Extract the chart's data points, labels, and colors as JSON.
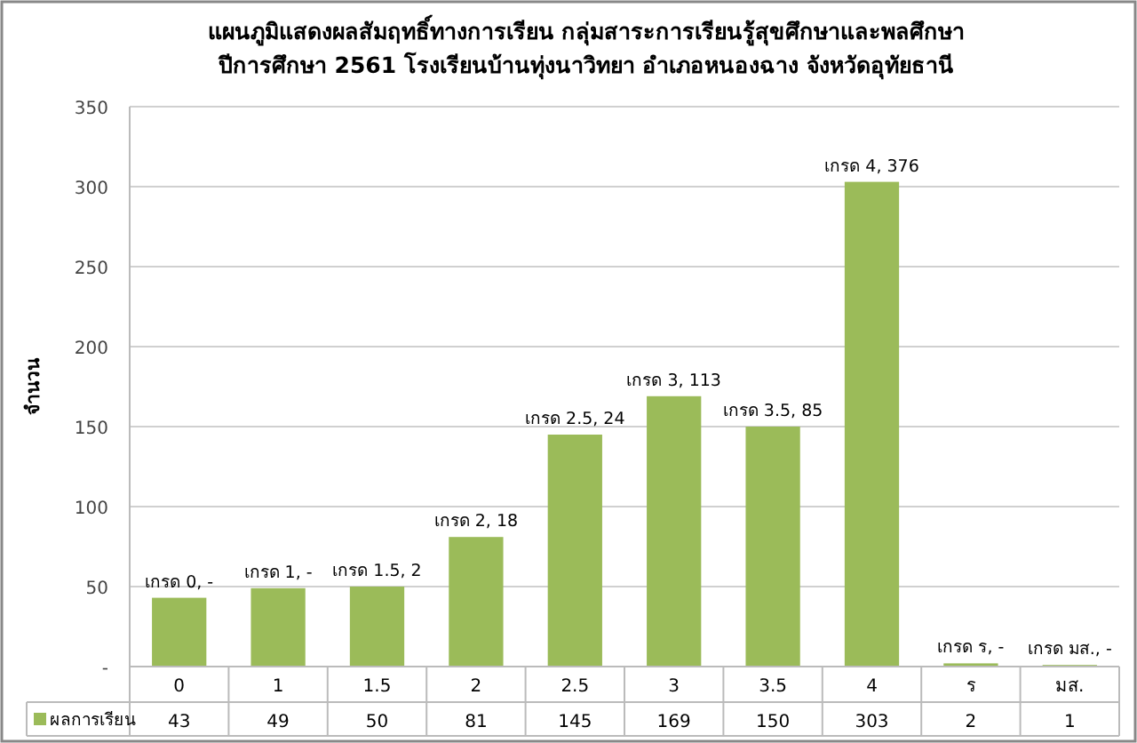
{
  "chart_data": {
    "type": "bar",
    "title": "แผนภูมิแสดงผลสัมฤทธิ์ทางการเรียน กลุ่มสาระการเรียนรู้สุขศึกษาและพลศึกษา\nปีการศึกษา 2561 โรงเรียนบ้านทุ่งนาวิทยา อำเภอหนองฉาง จังหวัดอุทัยธานี",
    "ylabel": "จำนวน",
    "categories": [
      "0",
      "1",
      "1.5",
      "2",
      "2.5",
      "3",
      "3.5",
      "4",
      "ร",
      "มส."
    ],
    "series": [
      {
        "name": "ผลการเรียน",
        "color": "#9bbb59",
        "values": [
          43,
          49,
          50,
          81,
          145,
          169,
          150,
          303,
          2,
          1
        ]
      }
    ],
    "annotations": [
      {
        "text": "เกรด 0,  -",
        "x": "0",
        "y": 43
      },
      {
        "text": "เกรด 1,  -",
        "x": "1",
        "y": 49
      },
      {
        "text": "เกรด 1.5,  2",
        "x": "1.5",
        "y": 50
      },
      {
        "text": "เกรด 2,  18",
        "x": "2",
        "y": 81
      },
      {
        "text": "เกรด 2.5,  24",
        "x": "2.5",
        "y": 145
      },
      {
        "text": "เกรด 3,  113",
        "x": "3",
        "y": 169
      },
      {
        "text": "เกรด 3.5,  85",
        "x": "3.5",
        "y": 150
      },
      {
        "text": "เกรด 4,  376",
        "x": "4",
        "y": 303
      },
      {
        "text": "เกรด ร,  -",
        "x": "ร",
        "y": 2
      },
      {
        "text": "เกรด มส.,  -",
        "x": "มส.",
        "y": 1
      }
    ],
    "ylim": [
      0,
      350
    ],
    "yticks": [
      {
        "value": 0,
        "label": "-"
      },
      50,
      100,
      150,
      200,
      250,
      300,
      350
    ],
    "grid": "y",
    "data_labels": true,
    "legend": "bottom left"
  }
}
